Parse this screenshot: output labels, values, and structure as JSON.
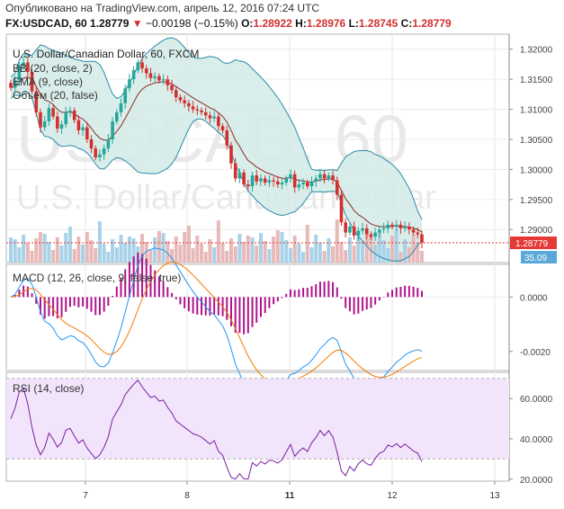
{
  "header": {
    "published": "Опубликовано на TradingView.com, апрель 12, 2016 07:24 UTC",
    "symbol": "FX:USDCAD, 60",
    "last": "1.28779",
    "change": "−0.00198 (−0.15%)",
    "o_label": "O:",
    "o_value": "1.28922",
    "h_label": "H:",
    "h_value": "1.28976",
    "l_label": "L:",
    "l_value": "1.28745",
    "c_label": "C:",
    "c_value": "1.28779"
  },
  "colors": {
    "up": "#26a69a",
    "down": "#d32f2f",
    "bb_fill": "#d5ece8",
    "bb_line": "#2b8aa8",
    "ema": "#8b2a2a",
    "macd": "#2196f3",
    "signal": "#f57c00",
    "hist": "#b0138a",
    "rsi": "#7b1fa2",
    "rsi_band": "#f1e4fb",
    "vol_up": "#a8d2e8",
    "vol_down": "#e8b9b9",
    "price_tag": "#e53935"
  },
  "chart_data": [
    {
      "type": "candlestick",
      "title": "U.S. Dollar/Canadian Dollar, 60, FXCM",
      "watermark_symbol": "USDCAD, 60",
      "watermark_name": "U.S. Dollar/Canadian Dollar",
      "legend": [
        "BB (20, close, 2)",
        "EMA (9, close)",
        "Объем (20, false)"
      ],
      "y_ticks": [
        "1.32000",
        "1.31500",
        "1.31000",
        "1.30500",
        "1.30000",
        "1.29500",
        "1.29000"
      ],
      "ylim": [
        1.2845,
        1.3225
      ],
      "last_price_label": "1.28779",
      "volume_label": "35.09",
      "x_ticks": [
        "7",
        "8",
        "11",
        "12",
        "13"
      ],
      "close": [
        1.3136,
        1.3148,
        1.3172,
        1.3178,
        1.3162,
        1.313,
        1.3095,
        1.307,
        1.308,
        1.3102,
        1.3088,
        1.3068,
        1.3075,
        1.3095,
        1.3098,
        1.3082,
        1.3065,
        1.307,
        1.305,
        1.3035,
        1.302,
        1.3025,
        1.3035,
        1.305,
        1.308,
        1.3095,
        1.311,
        1.3135,
        1.315,
        1.3165,
        1.3178,
        1.3168,
        1.316,
        1.3152,
        1.3155,
        1.3148,
        1.315,
        1.314,
        1.3132,
        1.312,
        1.3115,
        1.311,
        1.3105,
        1.31,
        1.3098,
        1.3095,
        1.309,
        1.3085,
        1.3088,
        1.3072,
        1.3065,
        1.304,
        1.301,
        1.2985,
        1.2995,
        1.2975,
        1.2972,
        1.299,
        1.298,
        1.2985,
        1.2978,
        1.2982,
        1.298,
        1.2975,
        1.2978,
        1.2985,
        1.2992,
        1.297,
        1.2975,
        1.2978,
        1.2972,
        1.298,
        1.2985,
        1.2992,
        1.2985,
        1.299,
        1.2982,
        1.2958,
        1.2912,
        1.2895,
        1.2905,
        1.289,
        1.2898,
        1.2902,
        1.2892,
        1.2888,
        1.2895,
        1.29,
        1.2902,
        1.2908,
        1.2905,
        1.2908,
        1.2902,
        1.2905,
        1.29,
        1.2895,
        1.2892,
        1.2878
      ],
      "series": [
        {
          "name": "BB (20, close, 2)"
        },
        {
          "name": "EMA (9, close)"
        },
        {
          "name": "Объем (20, false)"
        }
      ]
    },
    {
      "type": "line",
      "title": "MACD (12, 26, close, 9, false, true)",
      "y_ticks": [
        "0.0000",
        "-0.0020"
      ],
      "ylim": [
        -0.0027,
        0.0012
      ],
      "series": [
        {
          "name": "MACD"
        },
        {
          "name": "Signal"
        },
        {
          "name": "Histogram"
        }
      ]
    },
    {
      "type": "line",
      "title": "RSI (14, close)",
      "y_ticks": [
        "60.0000",
        "40.0000",
        "20.0000"
      ],
      "ylim": [
        19,
        73
      ],
      "band": [
        30,
        70
      ],
      "series": [
        {
          "name": "RSI"
        }
      ]
    }
  ]
}
